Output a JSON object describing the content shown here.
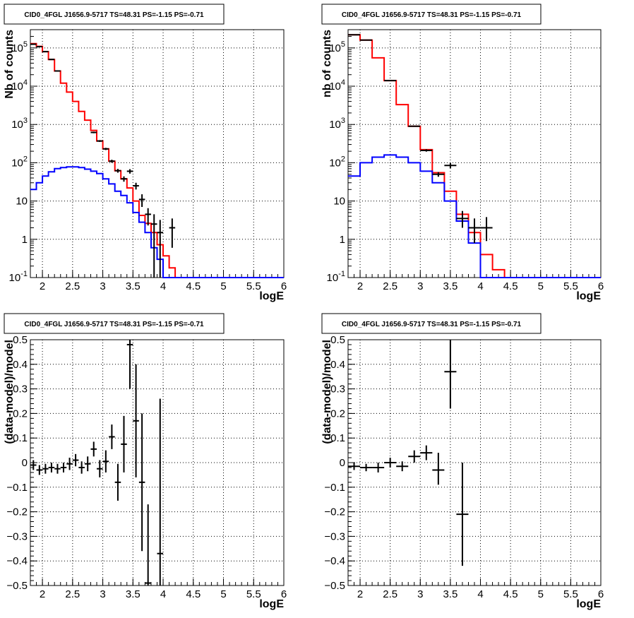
{
  "chart_data": [
    {
      "type": "histogram",
      "title": "CID0_4FGL J1656.9-5717 TS=48.31 PS=-1.15 PS=-0.71",
      "xlabel": "logE",
      "ylabel": "Nb of counts",
      "xlim": [
        1.8,
        6.0
      ],
      "ylim": [
        0.1,
        300000
      ],
      "ylog": true,
      "grid": true,
      "x_ticks": [
        "2",
        "2.5",
        "3",
        "3.5",
        "4",
        "4.5",
        "5",
        "5.5",
        "6"
      ],
      "y_ticks": [
        "10^-1",
        "1",
        "10",
        "10^2",
        "10^3",
        "10^4",
        "10^5"
      ],
      "series": [
        {
          "color": "#ff0000",
          "kind": "step",
          "edges": [
            1.8,
            1.9,
            2.0,
            2.1,
            2.2,
            2.3,
            2.4,
            2.5,
            2.6,
            2.7,
            2.8,
            2.9,
            3.0,
            3.1,
            3.2,
            3.3,
            3.4,
            3.5,
            3.6,
            3.7,
            3.8,
            3.9,
            4.0,
            4.1,
            4.2,
            4.3,
            4.4
          ],
          "values": [
            130000,
            110000,
            80000,
            50000,
            25000,
            12000,
            7000,
            4000,
            2200,
            1300,
            700,
            370,
            230,
            110,
            62,
            38,
            22,
            10,
            4.2,
            2.6,
            1.5,
            0.72,
            0.37,
            0.18,
            0.1,
            0.1
          ]
        },
        {
          "color": "#0000ff",
          "kind": "step",
          "edges": [
            1.8,
            1.9,
            2.0,
            2.1,
            2.2,
            2.3,
            2.4,
            2.5,
            2.6,
            2.7,
            2.8,
            2.9,
            3.0,
            3.1,
            3.2,
            3.3,
            3.4,
            3.5,
            3.6,
            3.7,
            3.8,
            3.9,
            4.0,
            4.1,
            6.0
          ],
          "values": [
            20,
            30,
            45,
            58,
            70,
            75,
            78,
            78,
            75,
            68,
            60,
            52,
            38,
            28,
            18,
            14,
            9,
            5,
            2.8,
            1.5,
            0.6,
            0.3,
            0.1,
            0.1
          ]
        },
        {
          "color": "#000000",
          "kind": "errorbar",
          "points": [
            {
              "x": 1.85,
              "y": 125000,
              "lo": 124000,
              "hi": 126000,
              "hw": 0.05
            },
            {
              "x": 1.95,
              "y": 108000,
              "lo": 107000,
              "hi": 109000,
              "hw": 0.05
            },
            {
              "x": 2.05,
              "y": 80000,
              "lo": 79000,
              "hi": 81000,
              "hw": 0.05
            },
            {
              "x": 2.15,
              "y": 50000,
              "lo": 49500,
              "hi": 50500,
              "hw": 0.05
            },
            {
              "x": 2.25,
              "y": 25000,
              "lo": 24700,
              "hi": 25300,
              "hw": 0.05
            },
            {
              "x": 2.85,
              "y": 620,
              "lo": 590,
              "hi": 650,
              "hw": 0.05
            },
            {
              "x": 2.95,
              "y": 370,
              "lo": 350,
              "hi": 390,
              "hw": 0.05
            },
            {
              "x": 3.05,
              "y": 230,
              "lo": 215,
              "hi": 245,
              "hw": 0.05
            },
            {
              "x": 3.15,
              "y": 110,
              "lo": 100,
              "hi": 120,
              "hw": 0.05
            },
            {
              "x": 3.25,
              "y": 62,
              "lo": 55,
              "hi": 69,
              "hw": 0.05
            },
            {
              "x": 3.35,
              "y": 38,
              "lo": 32,
              "hi": 44,
              "hw": 0.05
            },
            {
              "x": 3.45,
              "y": 60,
              "lo": 52,
              "hi": 68,
              "hw": 0.05
            },
            {
              "x": 3.55,
              "y": 25,
              "lo": 20,
              "hi": 30,
              "hw": 0.05
            },
            {
              "x": 3.65,
              "y": 11,
              "lo": 7,
              "hi": 15,
              "hw": 0.05
            },
            {
              "x": 3.75,
              "y": 4.5,
              "lo": 2.3,
              "hi": 6.5,
              "hw": 0.05
            },
            {
              "x": 3.85,
              "y": 2.5,
              "lo": 0.1,
              "hi": 4.5,
              "hw": 0.05
            },
            {
              "x": 3.95,
              "y": 1.5,
              "lo": 0.1,
              "hi": 3.2,
              "hw": 0.05
            },
            {
              "x": 4.15,
              "y": 2.0,
              "lo": 0.6,
              "hi": 3.5,
              "hw": 0.05
            }
          ]
        }
      ]
    },
    {
      "type": "histogram",
      "title": "CID0_4FGL J1656.9-5717 TS=48.31 PS=-1.15 PS=-0.71",
      "xlabel": "logE",
      "ylabel": "nb of counts",
      "xlim": [
        1.8,
        6.0
      ],
      "ylim": [
        0.1,
        300000
      ],
      "ylog": true,
      "grid": true,
      "x_ticks": [
        "2",
        "2.5",
        "3",
        "3.5",
        "4",
        "4.5",
        "5",
        "5.5",
        "6"
      ],
      "y_ticks": [
        "10^-1",
        "1",
        "10",
        "10^2",
        "10^3",
        "10^4",
        "10^5"
      ],
      "series": [
        {
          "color": "#ff0000",
          "kind": "step",
          "edges": [
            1.8,
            2.0,
            2.2,
            2.4,
            2.6,
            2.8,
            3.0,
            3.2,
            3.4,
            3.6,
            3.8,
            4.0,
            4.2,
            4.4,
            4.6
          ],
          "values": [
            220000,
            160000,
            55000,
            14000,
            3300,
            900,
            220,
            55,
            18,
            4.5,
            1.5,
            0.4,
            0.16,
            0.1
          ]
        },
        {
          "color": "#0000ff",
          "kind": "step",
          "edges": [
            1.8,
            2.0,
            2.2,
            2.4,
            2.6,
            2.8,
            3.0,
            3.2,
            3.4,
            3.6,
            3.8,
            4.0,
            4.2,
            6.0
          ],
          "values": [
            45,
            100,
            140,
            160,
            140,
            100,
            60,
            30,
            10,
            3,
            0.8,
            0.1,
            0.1
          ]
        },
        {
          "color": "#000000",
          "kind": "errorbar",
          "points": [
            {
              "x": 1.9,
              "y": 220000,
              "lo": 218000,
              "hi": 222000,
              "hw": 0.1
            },
            {
              "x": 2.1,
              "y": 160000,
              "lo": 158000,
              "hi": 162000,
              "hw": 0.1
            },
            {
              "x": 2.5,
              "y": 14000,
              "lo": 13800,
              "hi": 14200,
              "hw": 0.1
            },
            {
              "x": 2.9,
              "y": 900,
              "lo": 870,
              "hi": 930,
              "hw": 0.1
            },
            {
              "x": 3.1,
              "y": 210,
              "lo": 195,
              "hi": 225,
              "hw": 0.1
            },
            {
              "x": 3.3,
              "y": 50,
              "lo": 43,
              "hi": 57,
              "hw": 0.1
            },
            {
              "x": 3.5,
              "y": 85,
              "lo": 72,
              "hi": 98,
              "hw": 0.1
            },
            {
              "x": 3.7,
              "y": 3.5,
              "lo": 2.0,
              "hi": 5.5,
              "hw": 0.1
            },
            {
              "x": 3.9,
              "y": 2.0,
              "lo": 0.8,
              "hi": 3.5,
              "hw": 0.1
            },
            {
              "x": 4.1,
              "y": 2.0,
              "lo": 0.9,
              "hi": 3.8,
              "hw": 0.1
            }
          ]
        }
      ]
    },
    {
      "type": "scatter",
      "title": "CID0_4FGL J1656.9-5717 TS=48.31 PS=-1.15 PS=-0.71",
      "xlabel": "logE",
      "ylabel": "(data-model)/model",
      "xlim": [
        1.8,
        6.0
      ],
      "ylim": [
        -0.5,
        0.5
      ],
      "ylog": false,
      "grid": true,
      "x_ticks": [
        "2",
        "2.5",
        "3",
        "3.5",
        "4",
        "4.5",
        "5",
        "5.5",
        "6"
      ],
      "y_ticks": [
        "-0.5",
        "-0.4",
        "-0.3",
        "-0.2",
        "-0.1",
        "0",
        "0.1",
        "0.2",
        "0.3",
        "0.4",
        "0.5"
      ],
      "series": [
        {
          "color": "#000000",
          "kind": "errorbar",
          "points": [
            {
              "x": 1.85,
              "y": -0.01,
              "lo": -0.03,
              "hi": 0.01,
              "hw": 0.05
            },
            {
              "x": 1.95,
              "y": -0.03,
              "lo": -0.05,
              "hi": -0.01,
              "hw": 0.05
            },
            {
              "x": 2.05,
              "y": -0.025,
              "lo": -0.045,
              "hi": -0.005,
              "hw": 0.05
            },
            {
              "x": 2.15,
              "y": -0.02,
              "lo": -0.04,
              "hi": 0.0,
              "hw": 0.05
            },
            {
              "x": 2.25,
              "y": -0.025,
              "lo": -0.045,
              "hi": -0.005,
              "hw": 0.05
            },
            {
              "x": 2.35,
              "y": -0.02,
              "lo": -0.04,
              "hi": 0.0,
              "hw": 0.05
            },
            {
              "x": 2.45,
              "y": -0.005,
              "lo": -0.03,
              "hi": 0.02,
              "hw": 0.05
            },
            {
              "x": 2.55,
              "y": 0.01,
              "lo": -0.015,
              "hi": 0.035,
              "hw": 0.05
            },
            {
              "x": 2.65,
              "y": -0.02,
              "lo": -0.045,
              "hi": 0.005,
              "hw": 0.05
            },
            {
              "x": 2.75,
              "y": -0.005,
              "lo": -0.035,
              "hi": 0.025,
              "hw": 0.05
            },
            {
              "x": 2.85,
              "y": 0.055,
              "lo": 0.025,
              "hi": 0.085,
              "hw": 0.05
            },
            {
              "x": 2.95,
              "y": -0.025,
              "lo": -0.06,
              "hi": 0.01,
              "hw": 0.05
            },
            {
              "x": 3.05,
              "y": 0.005,
              "lo": -0.04,
              "hi": 0.05,
              "hw": 0.05
            },
            {
              "x": 3.15,
              "y": 0.105,
              "lo": 0.055,
              "hi": 0.155,
              "hw": 0.05
            },
            {
              "x": 3.25,
              "y": -0.08,
              "lo": -0.155,
              "hi": -0.005,
              "hw": 0.05
            },
            {
              "x": 3.35,
              "y": 0.075,
              "lo": -0.04,
              "hi": 0.19,
              "hw": 0.05
            },
            {
              "x": 3.45,
              "y": 0.48,
              "lo": 0.3,
              "hi": 0.5,
              "hw": 0.05
            },
            {
              "x": 3.55,
              "y": 0.17,
              "lo": -0.06,
              "hi": 0.4,
              "hw": 0.05
            },
            {
              "x": 3.65,
              "y": -0.08,
              "lo": -0.36,
              "hi": 0.2,
              "hw": 0.05
            },
            {
              "x": 3.75,
              "y": -0.49,
              "lo": -0.5,
              "hi": -0.17,
              "hw": 0.05
            },
            {
              "x": 3.95,
              "y": -0.37,
              "lo": -0.5,
              "hi": 0.26,
              "hw": 0.05
            }
          ]
        }
      ]
    },
    {
      "type": "scatter",
      "title": "CID0_4FGL J1656.9-5717 TS=48.31 PS=-1.15 PS=-0.71",
      "xlabel": "logE",
      "ylabel": "(data-model)/model",
      "xlim": [
        1.8,
        6.0
      ],
      "ylim": [
        -0.5,
        0.5
      ],
      "ylog": false,
      "grid": true,
      "x_ticks": [
        "2",
        "2.5",
        "3",
        "3.5",
        "4",
        "4.5",
        "5",
        "5.5",
        "6"
      ],
      "y_ticks": [
        "-0.5",
        "-0.4",
        "-0.3",
        "-0.2",
        "-0.1",
        "0",
        "0.1",
        "0.2",
        "0.3",
        "0.4",
        "0.5"
      ],
      "series": [
        {
          "color": "#000000",
          "kind": "errorbar",
          "points": [
            {
              "x": 1.9,
              "y": -0.015,
              "lo": -0.03,
              "hi": 0.0,
              "hw": 0.1
            },
            {
              "x": 2.1,
              "y": -0.02,
              "lo": -0.035,
              "hi": -0.005,
              "hw": 0.1
            },
            {
              "x": 2.3,
              "y": -0.02,
              "lo": -0.04,
              "hi": 0.0,
              "hw": 0.1
            },
            {
              "x": 2.5,
              "y": 0.0,
              "lo": -0.02,
              "hi": 0.02,
              "hw": 0.1
            },
            {
              "x": 2.7,
              "y": -0.015,
              "lo": -0.035,
              "hi": 0.005,
              "hw": 0.1
            },
            {
              "x": 2.9,
              "y": 0.025,
              "lo": 0.0,
              "hi": 0.05,
              "hw": 0.1
            },
            {
              "x": 3.1,
              "y": 0.04,
              "lo": 0.01,
              "hi": 0.07,
              "hw": 0.1
            },
            {
              "x": 3.3,
              "y": -0.03,
              "lo": -0.09,
              "hi": 0.04,
              "hw": 0.1
            },
            {
              "x": 3.5,
              "y": 0.37,
              "lo": 0.22,
              "hi": 0.5,
              "hw": 0.1
            },
            {
              "x": 3.7,
              "y": -0.21,
              "lo": -0.42,
              "hi": 0.0,
              "hw": 0.1
            }
          ]
        }
      ]
    }
  ]
}
